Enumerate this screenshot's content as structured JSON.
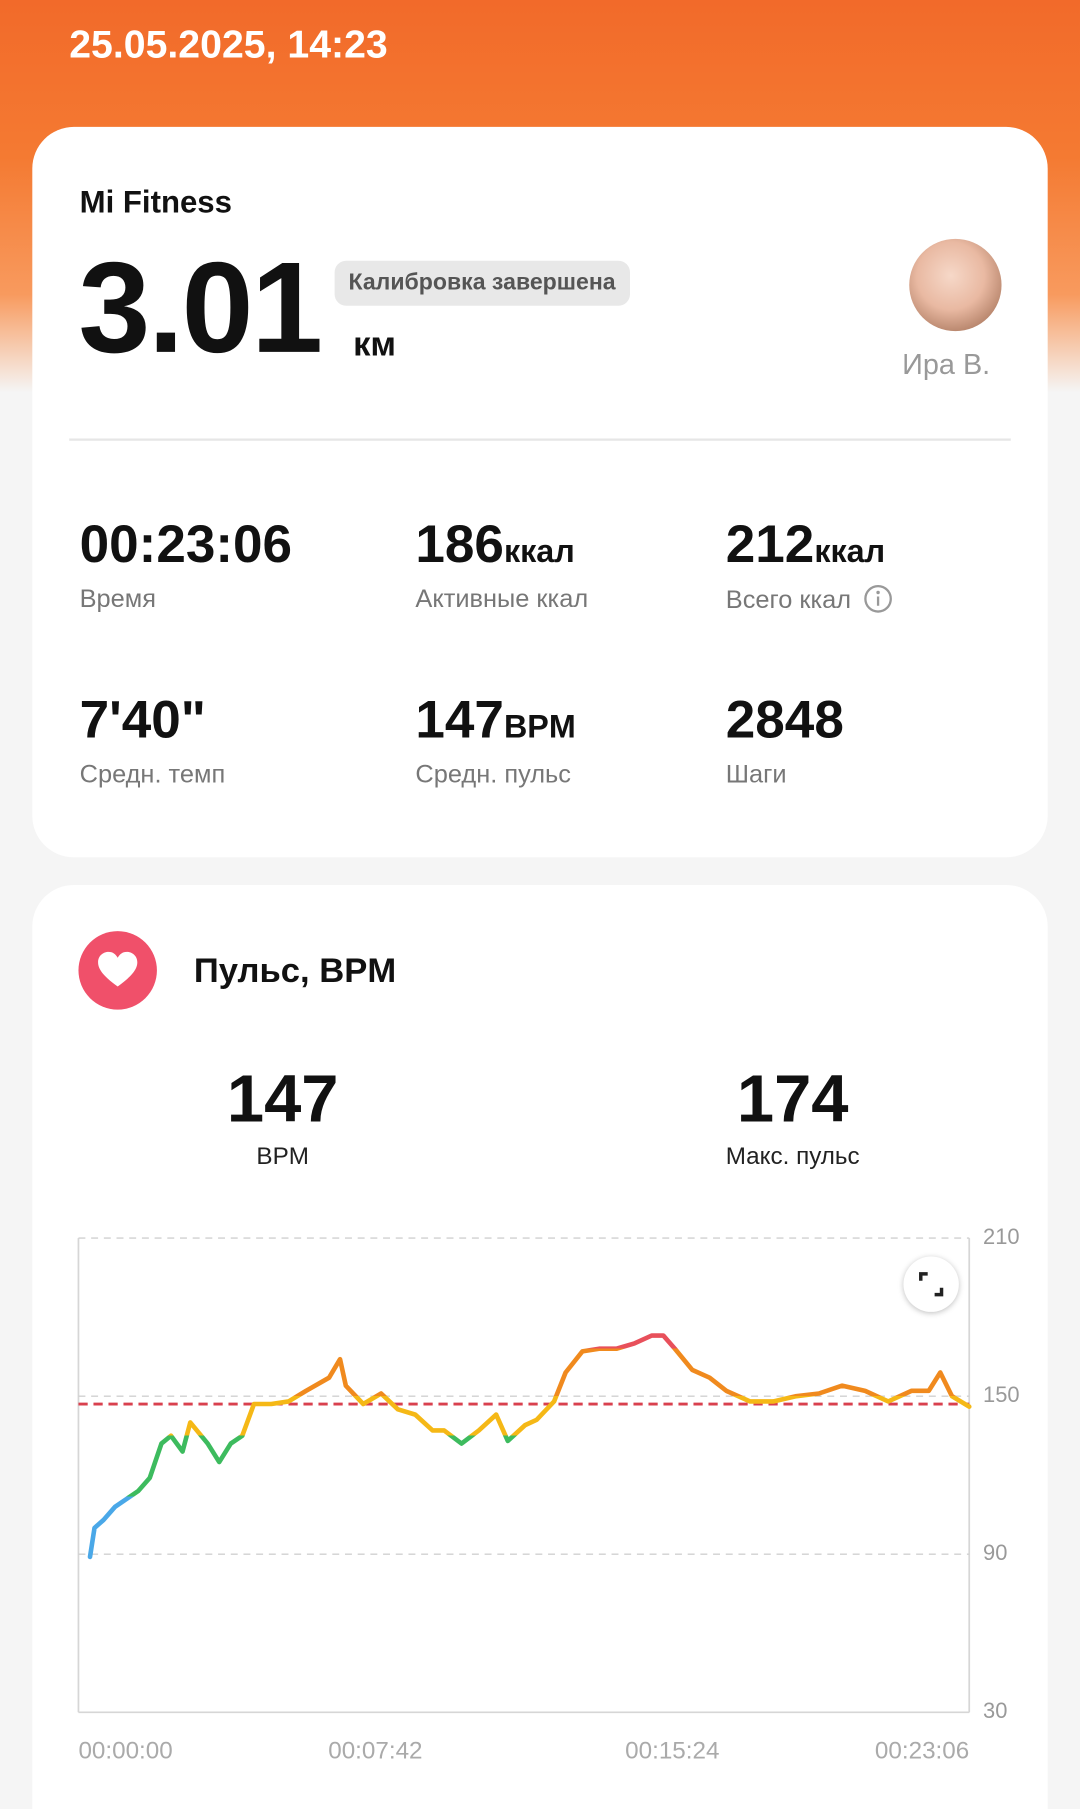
{
  "header": {
    "date": "25.05.2025, 14:23"
  },
  "summary": {
    "source": "Mi Fitness",
    "distance": "3.01",
    "distance_unit": "км",
    "badge": "Калибровка завершена",
    "user": "Ира В."
  },
  "stats": [
    {
      "value": "00:23:06",
      "label": "Время"
    },
    {
      "value": 186,
      "unit": "ккал",
      "label": "Активные ккал"
    },
    {
      "value": 212,
      "unit": "ккал",
      "label": "Всего ккал"
    },
    {
      "value": "7'40\"",
      "label": "Средн. темп"
    },
    {
      "value": 147,
      "unit": "BPM",
      "label": "Средн. пульс"
    },
    {
      "value": 2848,
      "label": "Шаги"
    }
  ],
  "pulse": {
    "title": "Пульс, BPM",
    "avg": 147,
    "avg_label": "BPM",
    "max": 174,
    "max_label": "Макс. пульс"
  },
  "chart_data": {
    "type": "line",
    "reference_line": 147,
    "reference_color": "#d9404e",
    "series": [
      {
        "name": "Пульс",
        "x": [
          18,
          25,
          39,
          57,
          75,
          93,
          111,
          129,
          144,
          162,
          174,
          201,
          219,
          237,
          255,
          273,
          300,
          327,
          354,
          390,
          407,
          416,
          443,
          471,
          497,
          524,
          551,
          569,
          596,
          623,
          650,
          668,
          695,
          713,
          740,
          758,
          784,
          810,
          837,
          865,
          892,
          910,
          928,
          955,
          982,
          1008,
          1045,
          1081,
          1117,
          1152,
          1188,
          1224,
          1260,
          1296,
          1323,
          1341,
          1359,
          1386
        ],
        "values": [
          89,
          100,
          103,
          108,
          111,
          114,
          119,
          132,
          135,
          129,
          140,
          132,
          125,
          132,
          135,
          147,
          147,
          148,
          152,
          157,
          164,
          154,
          147,
          151,
          145,
          143,
          137,
          137,
          132,
          137,
          143,
          133,
          139,
          141,
          148,
          159,
          167,
          168,
          168,
          170,
          173,
          173,
          168,
          160,
          157,
          152,
          148,
          148,
          150,
          151,
          154,
          152,
          148,
          152,
          152,
          159,
          150,
          146
        ],
        "color_zones": [
          {
            "from": 30,
            "color": "#4aa8e8"
          },
          {
            "from": 112,
            "color": "#3dbb5e"
          },
          {
            "from": 135,
            "color": "#f5b816"
          },
          {
            "from": 150,
            "color": "#f08a1e"
          },
          {
            "from": 168,
            "color": "#e8505b"
          }
        ]
      }
    ],
    "xlim": [
      0,
      1386
    ],
    "xticks": [
      {
        "value": 0,
        "label": "00:00:00"
      },
      {
        "value": 462,
        "label": "00:07:42"
      },
      {
        "value": 924,
        "label": "00:15:24"
      },
      {
        "value": 1386,
        "label": "00:23:06"
      }
    ],
    "ylim": [
      30,
      210
    ],
    "yticks": [
      30,
      90,
      150,
      210
    ],
    "grid": true
  }
}
